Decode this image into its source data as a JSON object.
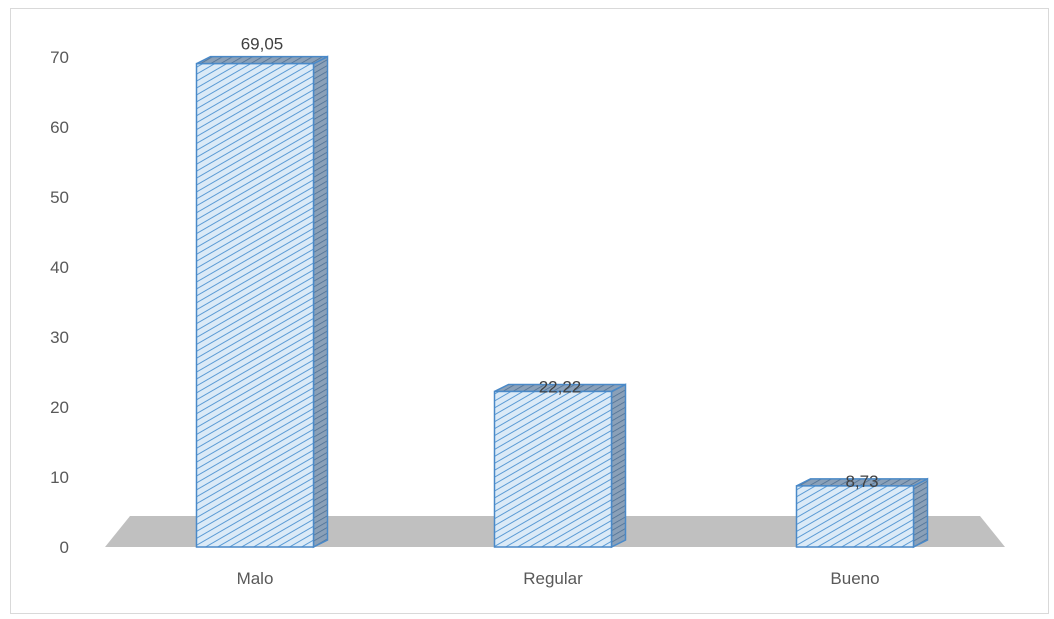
{
  "chart_data": {
    "type": "bar",
    "style": "3d-column",
    "categories": [
      "Malo",
      "Regular",
      "Bueno"
    ],
    "values": [
      69.05,
      22.22,
      8.73
    ],
    "data_labels": [
      "69,05",
      "22,22",
      "8,73"
    ],
    "y_ticks": [
      "0",
      "10",
      "20",
      "30",
      "40",
      "50",
      "60",
      "70"
    ],
    "ylim": [
      0,
      70
    ],
    "grid": false,
    "legend": "none",
    "colors": {
      "bar_face": "#dbeaf7",
      "bar_hatch": "#5b9bd5",
      "bar_side": "#7f8fa3",
      "bar_outline": "#4a89c8",
      "floor": "#c0c0c0",
      "text": "#595959"
    }
  }
}
